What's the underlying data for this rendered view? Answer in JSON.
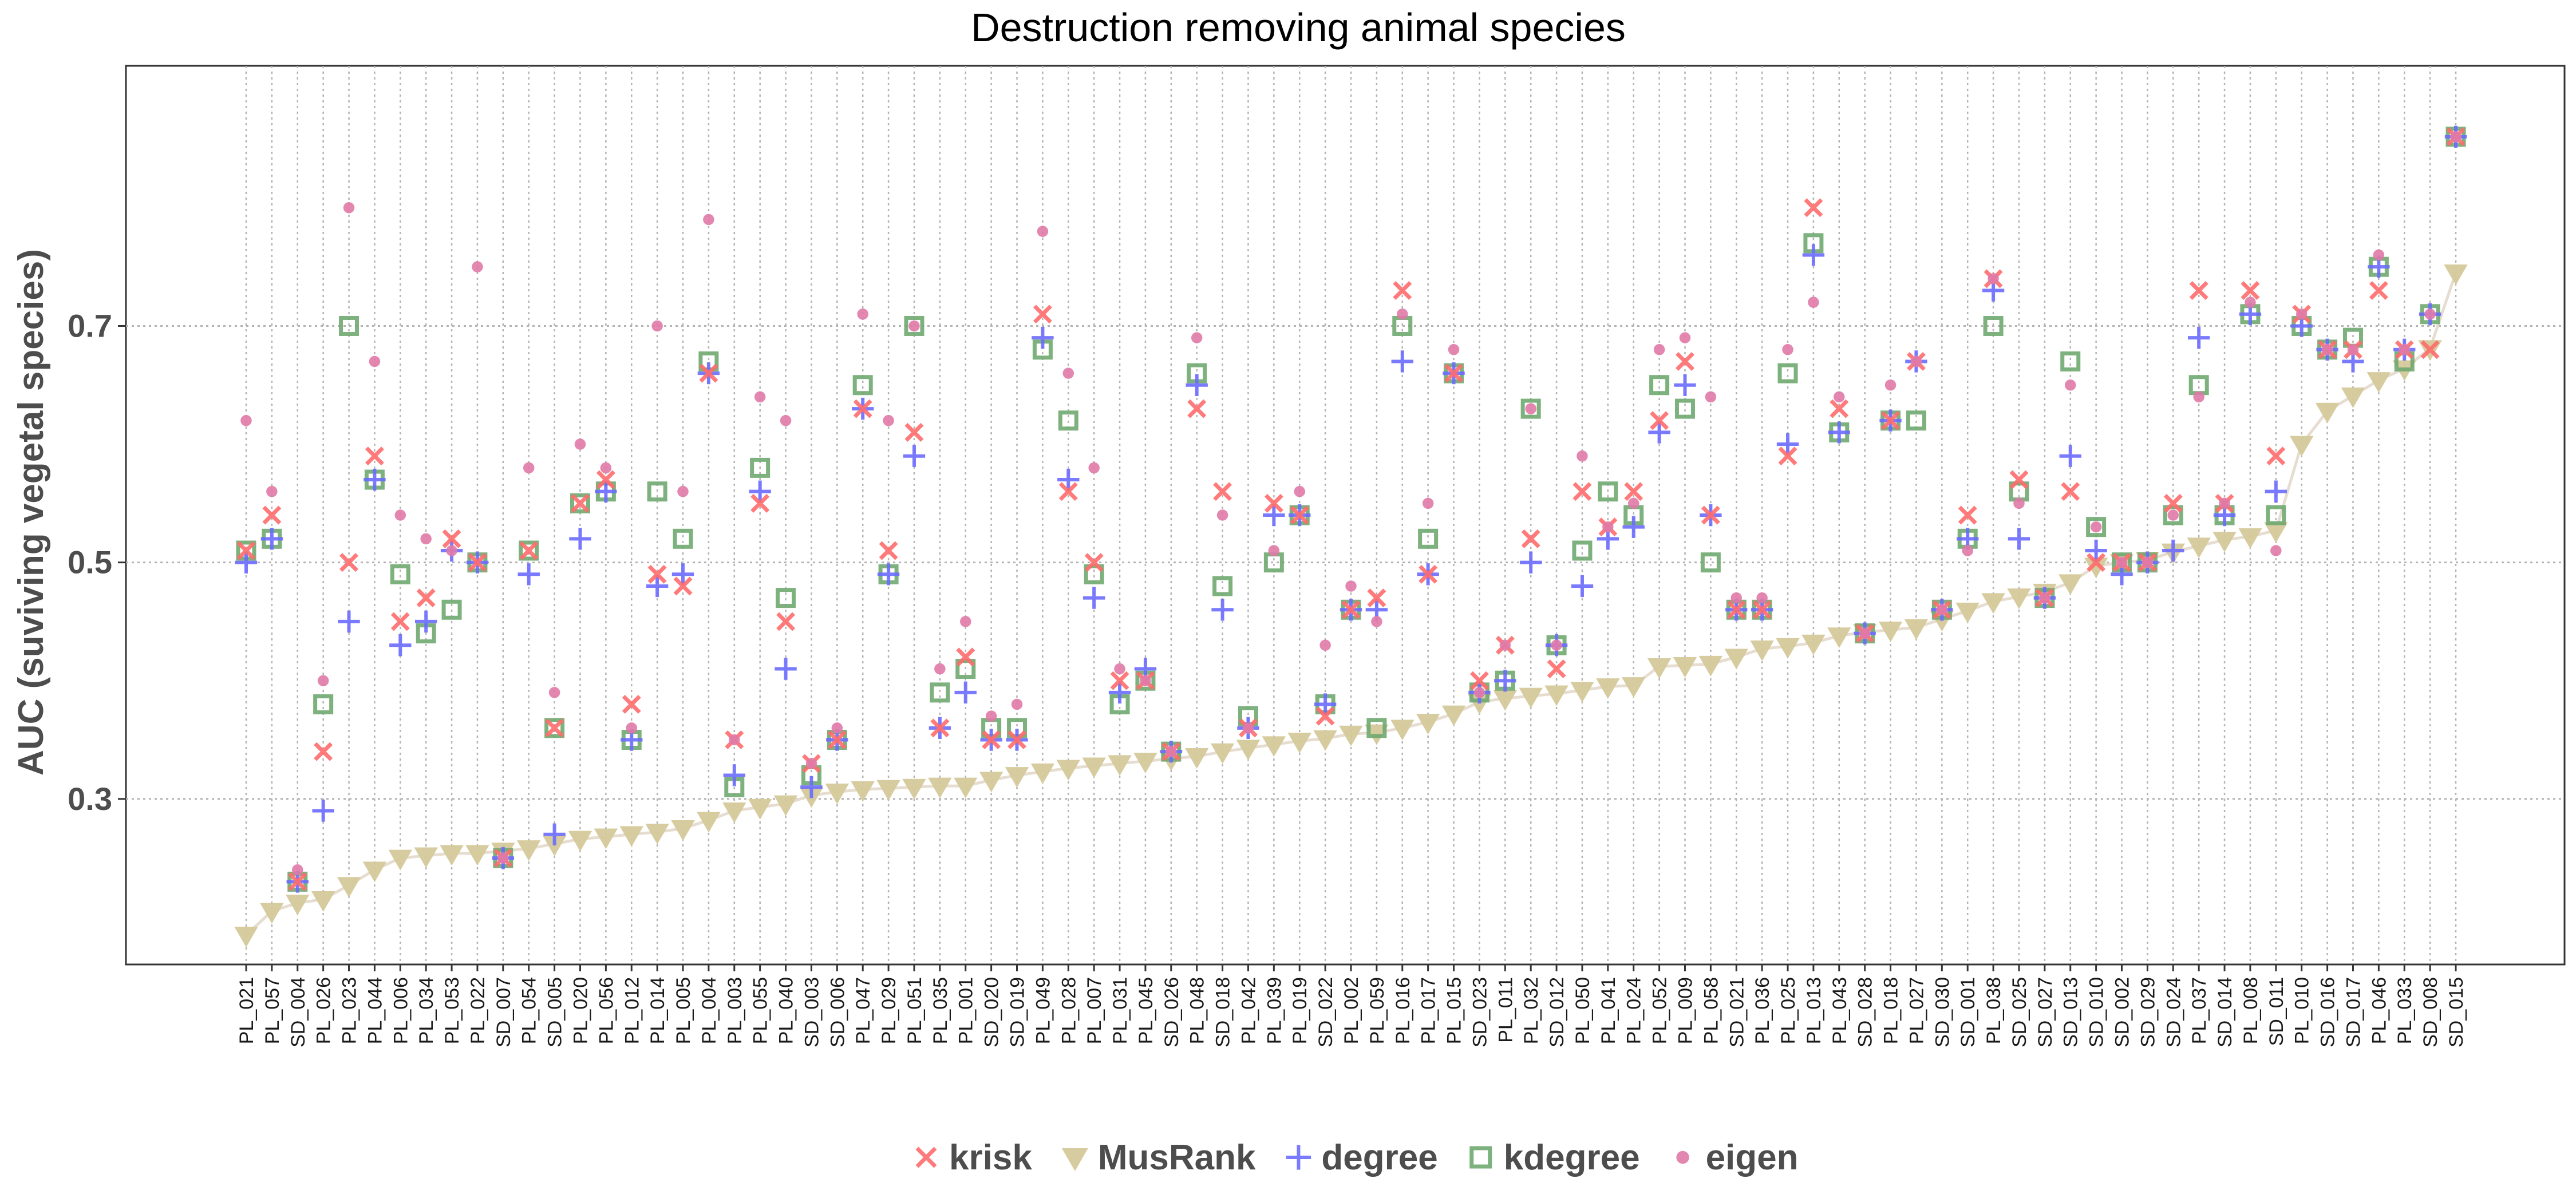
{
  "chart_data": {
    "type": "scatter",
    "title": "Destruction removing animal species",
    "xlabel": "",
    "ylabel": "AUC (suviving vegetal species)",
    "ylim": [
      0.16,
      0.92
    ],
    "yticks": [
      0.3,
      0.5,
      0.7
    ],
    "ytick_labels": [
      "0.3",
      "0.5",
      "0.7"
    ],
    "grid": true,
    "legend_position": "bottom",
    "categories": [
      "PL_021",
      "PL_057",
      "SD_004",
      "PL_026",
      "PL_023",
      "PL_044",
      "PL_006",
      "PL_034",
      "PL_053",
      "PL_022",
      "SD_007",
      "PL_054",
      "SD_005",
      "PL_020",
      "PL_056",
      "PL_012",
      "PL_014",
      "PL_005",
      "PL_004",
      "PL_003",
      "PL_055",
      "PL_040",
      "SD_003",
      "SD_006",
      "PL_047",
      "PL_029",
      "PL_051",
      "PL_035",
      "PL_001",
      "SD_020",
      "SD_019",
      "PL_049",
      "PL_028",
      "PL_007",
      "PL_031",
      "PL_045",
      "SD_026",
      "PL_048",
      "SD_018",
      "PL_042",
      "PL_039",
      "PL_019",
      "SD_022",
      "PL_002",
      "PL_059",
      "PL_016",
      "PL_017",
      "PL_015",
      "SD_023",
      "PL_011",
      "PL_032",
      "SD_012",
      "PL_050",
      "PL_041",
      "PL_024",
      "PL_052",
      "PL_009",
      "PL_058",
      "SD_021",
      "PL_036",
      "PL_025",
      "PL_013",
      "PL_043",
      "SD_028",
      "PL_018",
      "PL_027",
      "SD_030",
      "SD_001",
      "PL_038",
      "SD_025",
      "SD_027",
      "SD_013",
      "SD_010",
      "SD_002",
      "SD_029",
      "SD_024",
      "PL_037",
      "SD_014",
      "PL_008",
      "SD_011",
      "PL_010",
      "SD_016",
      "SD_017",
      "PL_046",
      "PL_033",
      "SD_008",
      "SD_015"
    ],
    "series": [
      {
        "name": "krisk",
        "marker": "x",
        "color": "#ff6b6b",
        "values": [
          0.51,
          0.54,
          0.23,
          0.34,
          0.5,
          0.59,
          0.45,
          0.47,
          0.52,
          0.5,
          0.25,
          0.51,
          0.36,
          0.55,
          0.57,
          0.38,
          0.49,
          0.48,
          0.66,
          0.35,
          0.55,
          0.45,
          0.33,
          0.35,
          0.63,
          0.51,
          0.61,
          0.36,
          0.42,
          0.35,
          0.35,
          0.71,
          0.56,
          0.5,
          0.4,
          0.4,
          0.34,
          0.63,
          0.56,
          0.36,
          0.55,
          0.54,
          0.37,
          0.46,
          0.47,
          0.73,
          0.49,
          0.66,
          0.4,
          0.43,
          0.52,
          0.41,
          0.56,
          0.53,
          0.56,
          0.62,
          0.67,
          0.54,
          0.46,
          0.46,
          0.59,
          0.8,
          0.63,
          0.44,
          0.62,
          0.67,
          0.46,
          0.54,
          0.74,
          0.57,
          0.47,
          0.56,
          0.5,
          0.5,
          0.5,
          0.55,
          0.73,
          0.55,
          0.73,
          0.59,
          0.71,
          0.68,
          0.68,
          0.73,
          0.68,
          0.68,
          0.86
        ]
      },
      {
        "name": "MusRank",
        "marker": "triangle-down",
        "color": "#d5c99a",
        "values": [
          0.185,
          0.205,
          0.212,
          0.215,
          0.227,
          0.24,
          0.25,
          0.252,
          0.254,
          0.254,
          0.256,
          0.258,
          0.262,
          0.266,
          0.268,
          0.27,
          0.272,
          0.275,
          0.282,
          0.29,
          0.293,
          0.296,
          0.303,
          0.306,
          0.308,
          0.309,
          0.31,
          0.311,
          0.311,
          0.316,
          0.32,
          0.323,
          0.326,
          0.328,
          0.33,
          0.332,
          0.334,
          0.336,
          0.34,
          0.343,
          0.346,
          0.349,
          0.351,
          0.355,
          0.356,
          0.36,
          0.365,
          0.372,
          0.382,
          0.385,
          0.387,
          0.389,
          0.392,
          0.395,
          0.396,
          0.412,
          0.413,
          0.414,
          0.42,
          0.427,
          0.429,
          0.432,
          0.438,
          0.441,
          0.443,
          0.445,
          0.452,
          0.459,
          0.467,
          0.471,
          0.475,
          0.483,
          0.497,
          0.5,
          0.502,
          0.509,
          0.514,
          0.519,
          0.522,
          0.527,
          0.6,
          0.628,
          0.641,
          0.654,
          0.664,
          0.681,
          0.745
        ]
      },
      {
        "name": "degree",
        "marker": "plus",
        "color": "#6b6bff",
        "values": [
          0.5,
          0.52,
          0.23,
          0.29,
          0.45,
          0.57,
          0.43,
          0.45,
          0.51,
          0.5,
          0.25,
          0.49,
          0.27,
          0.52,
          0.56,
          0.35,
          0.48,
          0.49,
          0.66,
          0.32,
          0.56,
          0.41,
          0.31,
          0.35,
          0.63,
          0.49,
          0.59,
          0.36,
          0.39,
          0.35,
          0.35,
          0.69,
          0.57,
          0.47,
          0.39,
          0.41,
          0.34,
          0.65,
          0.46,
          0.36,
          0.54,
          0.54,
          0.38,
          0.46,
          0.46,
          0.67,
          0.49,
          0.66,
          0.39,
          0.4,
          0.5,
          0.43,
          0.48,
          0.52,
          0.53,
          0.61,
          0.65,
          0.54,
          0.46,
          0.46,
          0.6,
          0.76,
          0.61,
          0.44,
          0.62,
          0.67,
          0.46,
          0.52,
          0.73,
          0.52,
          0.47,
          0.59,
          0.51,
          0.49,
          0.5,
          0.51,
          0.69,
          0.54,
          0.71,
          0.56,
          0.7,
          0.68,
          0.67,
          0.75,
          0.68,
          0.71,
          0.86
        ]
      },
      {
        "name": "kdegree",
        "marker": "square",
        "color": "#6fa86f",
        "values": [
          0.51,
          0.52,
          0.23,
          0.38,
          0.7,
          0.57,
          0.49,
          0.44,
          0.46,
          0.5,
          0.25,
          0.51,
          0.36,
          0.55,
          0.56,
          0.35,
          0.56,
          0.52,
          0.67,
          0.31,
          0.58,
          0.47,
          0.32,
          0.35,
          0.65,
          0.49,
          0.7,
          0.39,
          0.41,
          0.36,
          0.36,
          0.68,
          0.62,
          0.49,
          0.38,
          0.4,
          0.34,
          0.66,
          0.48,
          0.37,
          0.5,
          0.54,
          0.38,
          0.46,
          0.36,
          0.7,
          0.52,
          0.66,
          0.39,
          0.4,
          0.63,
          0.43,
          0.51,
          0.56,
          0.54,
          0.65,
          0.63,
          0.5,
          0.46,
          0.46,
          0.66,
          0.77,
          0.61,
          0.44,
          0.62,
          0.62,
          0.46,
          0.52,
          0.7,
          0.56,
          0.47,
          0.67,
          0.53,
          0.5,
          0.5,
          0.54,
          0.65,
          0.54,
          0.71,
          0.54,
          0.7,
          0.68,
          0.69,
          0.75,
          0.67,
          0.71,
          0.86
        ]
      },
      {
        "name": "eigen",
        "marker": "dot",
        "color": "#e07aa8",
        "values": [
          0.62,
          0.56,
          0.24,
          0.4,
          0.8,
          0.67,
          0.54,
          0.52,
          0.51,
          0.75,
          0.25,
          0.58,
          0.39,
          0.6,
          0.58,
          0.36,
          0.7,
          0.56,
          0.79,
          0.35,
          0.64,
          0.62,
          0.33,
          0.36,
          0.71,
          0.62,
          0.7,
          0.41,
          0.45,
          0.37,
          0.38,
          0.78,
          0.66,
          0.58,
          0.41,
          0.4,
          0.34,
          0.69,
          0.54,
          0.36,
          0.51,
          0.56,
          0.43,
          0.48,
          0.45,
          0.71,
          0.55,
          0.68,
          0.39,
          0.43,
          0.63,
          0.43,
          0.59,
          0.53,
          0.55,
          0.68,
          0.69,
          0.64,
          0.47,
          0.47,
          0.68,
          0.72,
          0.64,
          0.44,
          0.65,
          0.67,
          0.46,
          0.51,
          0.74,
          0.55,
          0.47,
          0.65,
          0.53,
          0.5,
          0.5,
          0.54,
          0.64,
          0.55,
          0.72,
          0.51,
          0.71,
          0.68,
          0.68,
          0.76,
          0.68,
          0.71,
          0.86
        ]
      }
    ]
  }
}
